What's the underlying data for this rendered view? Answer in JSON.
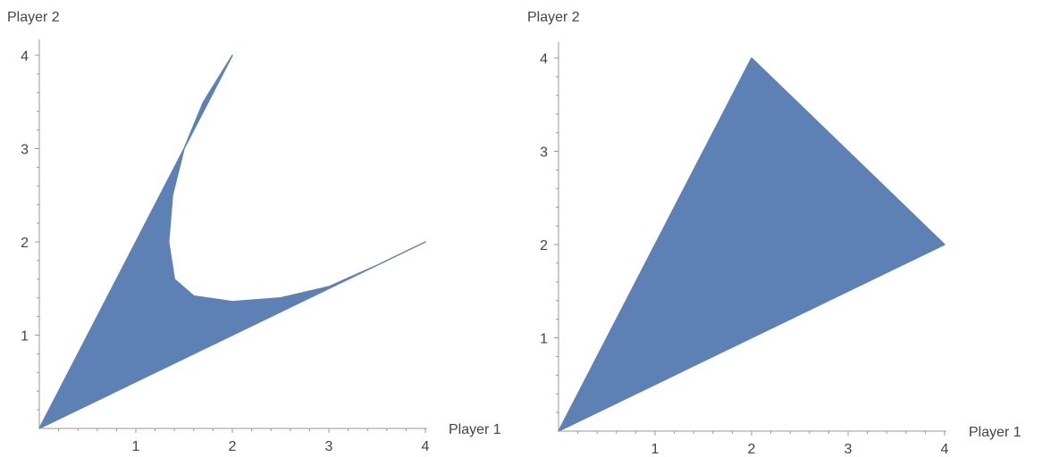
{
  "chart_data": [
    {
      "type": "area",
      "xlabel": "Player 1",
      "ylabel": "Player 2",
      "xlim": [
        0,
        4
      ],
      "ylim": [
        0,
        4
      ],
      "xticks": [
        1,
        2,
        3,
        4
      ],
      "yticks": [
        1,
        2,
        3,
        4
      ],
      "grid": false,
      "fill_color": "#5e81b5",
      "region_boundary": [
        [
          0,
          0
        ],
        [
          4,
          2
        ],
        [
          3.5,
          1.75
        ],
        [
          3,
          1.52
        ],
        [
          2.5,
          1.4
        ],
        [
          2,
          1.36
        ],
        [
          1.6,
          1.42
        ],
        [
          1.4,
          1.6
        ],
        [
          1.34,
          2.0
        ],
        [
          1.38,
          2.5
        ],
        [
          1.5,
          3.0
        ],
        [
          1.7,
          3.5
        ],
        [
          2,
          4
        ],
        [
          0,
          0
        ]
      ]
    },
    {
      "type": "area",
      "xlabel": "Player 1",
      "ylabel": "Player 2",
      "xlim": [
        0,
        4
      ],
      "ylim": [
        0,
        4
      ],
      "xticks": [
        1,
        2,
        3,
        4
      ],
      "yticks": [
        1,
        2,
        3,
        4
      ],
      "grid": false,
      "fill_color": "#5e81b5",
      "region_boundary": [
        [
          0,
          0
        ],
        [
          4,
          2
        ],
        [
          2,
          4
        ],
        [
          0,
          0
        ]
      ]
    }
  ]
}
